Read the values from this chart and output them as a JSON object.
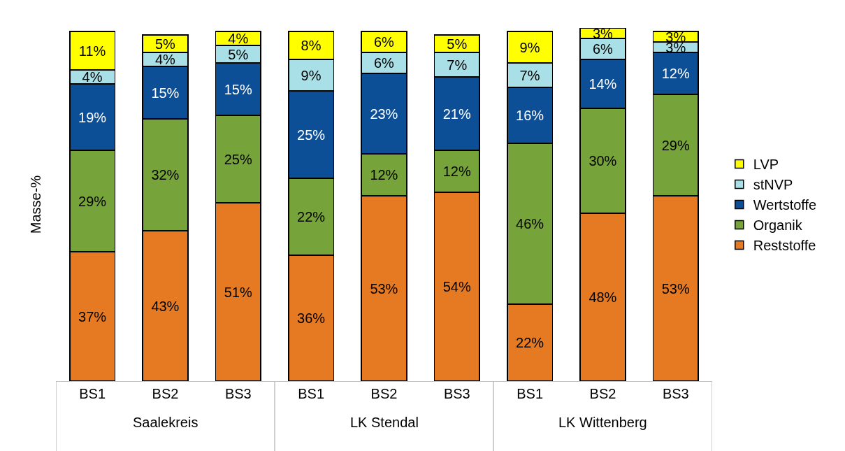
{
  "chart_data": {
    "type": "bar",
    "stacked": true,
    "ylabel": "Masse-%",
    "categories": [
      "BS1",
      "BS2",
      "BS3",
      "BS1",
      "BS2",
      "BS3",
      "BS1",
      "BS2",
      "BS3"
    ],
    "annotations": [
      "Saalekreis",
      "LK Stendal",
      "LK Wittenberg"
    ],
    "series": [
      {
        "name": "Reststoffe",
        "color": "#e57a23",
        "values": [
          37,
          43,
          51,
          36,
          53,
          54,
          22,
          48,
          53
        ],
        "value_labels": [
          "37%",
          "43%",
          "51%",
          "36%",
          "53%",
          "54%",
          "22%",
          "48%",
          "53%"
        ]
      },
      {
        "name": "Organik",
        "color": "#76a33a",
        "values": [
          29,
          32,
          25,
          22,
          12,
          12,
          46,
          30,
          29
        ],
        "value_labels": [
          "29%",
          "32%",
          "25%",
          "22%",
          "12%",
          "12%",
          "46%",
          "30%",
          "29%"
        ]
      },
      {
        "name": "Wertstoffe",
        "color": "#0d4f96",
        "values": [
          19,
          15,
          15,
          25,
          23,
          21,
          16,
          14,
          12
        ],
        "value_labels": [
          "19%",
          "15%",
          "15%",
          "25%",
          "23%",
          "21%",
          "16%",
          "14%",
          "12%"
        ]
      },
      {
        "name": "stNVP",
        "color": "#a9dfe6",
        "values": [
          4,
          4,
          5,
          9,
          6,
          7,
          7,
          6,
          3
        ],
        "value_labels": [
          "4%",
          "4%",
          "5%",
          "9%",
          "6%",
          "7%",
          "7%",
          "6%",
          "3%"
        ]
      },
      {
        "name": "LVP",
        "color": "#ffff00",
        "values": [
          11,
          5,
          4,
          8,
          6,
          5,
          9,
          3,
          3
        ],
        "value_labels": [
          "11%",
          "5%",
          "4%",
          "8%",
          "6%",
          "5%",
          "9%",
          "3%",
          "3%"
        ]
      }
    ],
    "legend": "right",
    "tick_labels": "x"
  }
}
